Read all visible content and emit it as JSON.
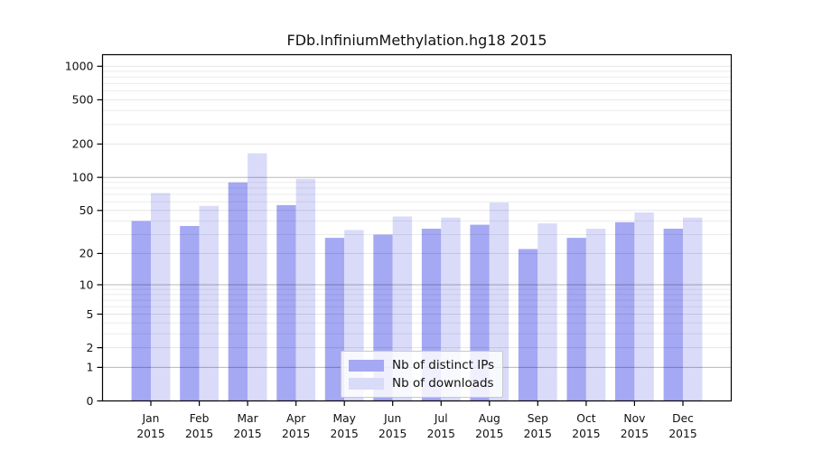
{
  "page": {
    "title": "FDb.InfiniumMethylation.hg18 2015"
  },
  "chart_data": {
    "type": "bar",
    "title": "FDb.InfiniumMethylation.hg18 2015",
    "categories": [
      "Jan",
      "Feb",
      "Mar",
      "Apr",
      "May",
      "Jun",
      "Jul",
      "Aug",
      "Sep",
      "Oct",
      "Nov",
      "Dec"
    ],
    "x_tick_year": "2015",
    "series": [
      {
        "name": "Nb of distinct IPs",
        "color": "#a5a8f3",
        "values": [
          40,
          36,
          90,
          56,
          28,
          30,
          34,
          37,
          22,
          28,
          39,
          34
        ]
      },
      {
        "name": "Nb of downloads",
        "color": "#d9dbf9",
        "values": [
          72,
          55,
          165,
          97,
          33,
          44,
          43,
          59,
          38,
          34,
          48,
          43
        ]
      }
    ],
    "yticks": [
      0,
      1,
      2,
      5,
      10,
      20,
      50,
      100,
      200,
      500,
      1000
    ],
    "yscale": "log10(value+1)",
    "ylim": [
      0,
      1280
    ],
    "xlabel": "",
    "ylabel": "",
    "grid": true,
    "legend": {
      "labels": [
        "Nb of distinct IPs",
        "Nb of downloads"
      ],
      "position": "bottom-center-inside"
    }
  }
}
